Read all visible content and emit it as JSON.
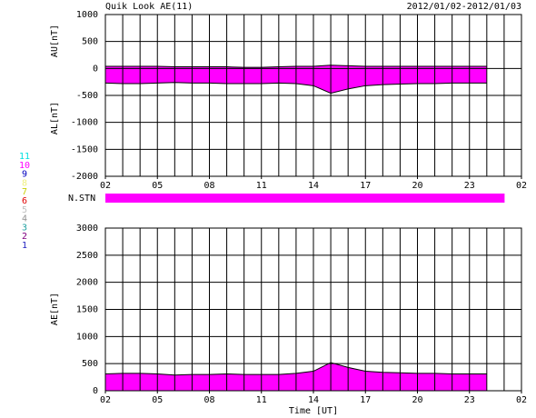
{
  "chart_data": [
    {
      "type": "band",
      "title": "Quik Look AE(11)",
      "subtitle": "2012/01/02-2012/01/03",
      "x": [
        0,
        1,
        2,
        3,
        4,
        5,
        6,
        7,
        8,
        9,
        10,
        11,
        12,
        13,
        14,
        15,
        16,
        17,
        18,
        19,
        20,
        21,
        22
      ],
      "xlim": [
        0,
        24
      ],
      "xticks": [
        {
          "value": 0,
          "label": "02"
        },
        {
          "value": 3,
          "label": "05"
        },
        {
          "value": 6,
          "label": "08"
        },
        {
          "value": 9,
          "label": "11"
        },
        {
          "value": 12,
          "label": "14"
        },
        {
          "value": 15,
          "label": "17"
        },
        {
          "value": 18,
          "label": "20"
        },
        {
          "value": 21,
          "label": "23"
        },
        {
          "value": 24,
          "label": "02"
        }
      ],
      "xgrid_step": 1,
      "ylim": [
        -2000,
        1000
      ],
      "yticks": [
        -2000,
        -1500,
        -1000,
        -500,
        0,
        500,
        1000
      ],
      "grid": true,
      "fill": "#ff00ff",
      "series": [
        {
          "name": "AU[nT]",
          "color": "#000000",
          "values": [
            40,
            40,
            40,
            40,
            30,
            30,
            30,
            30,
            20,
            20,
            30,
            40,
            40,
            60,
            50,
            40,
            40,
            40,
            40,
            40,
            40,
            40,
            40
          ]
        },
        {
          "name": "AL[nT]",
          "color": "#000000",
          "values": [
            -270,
            -280,
            -280,
            -270,
            -260,
            -270,
            -270,
            -280,
            -280,
            -280,
            -270,
            -280,
            -320,
            -460,
            -380,
            -320,
            -300,
            -290,
            -280,
            -280,
            -270,
            -270,
            -270
          ]
        }
      ]
    },
    {
      "type": "strip",
      "ylabel": "N.STN",
      "x": [
        0,
        1,
        2,
        3,
        4,
        5,
        6,
        7,
        8,
        9,
        10,
        11,
        12,
        13,
        14,
        15,
        16,
        17,
        18,
        19,
        20,
        21,
        22
      ],
      "values": [
        10,
        10,
        10,
        10,
        10,
        10,
        10,
        10,
        10,
        10,
        10,
        10,
        10,
        10,
        10,
        10,
        10,
        10,
        10,
        10,
        10,
        10,
        10
      ],
      "legend": [
        {
          "count": 11,
          "color": "#00e0e0"
        },
        {
          "count": 10,
          "color": "#ff00ff"
        },
        {
          "count": 9,
          "color": "#0000c0"
        },
        {
          "count": 8,
          "color": "#f0f080"
        },
        {
          "count": 7,
          "color": "#c8d000"
        },
        {
          "count": 6,
          "color": "#e00000"
        },
        {
          "count": 5,
          "color": "#c0c0c0"
        },
        {
          "count": 4,
          "color": "#909090"
        },
        {
          "count": 3,
          "color": "#20a0a0"
        },
        {
          "count": 2,
          "color": "#800080"
        },
        {
          "count": 1,
          "color": "#2020c0"
        }
      ]
    },
    {
      "type": "area",
      "xlabel": "Time [UT]",
      "ylabel": "AE[nT]",
      "x": [
        0,
        1,
        2,
        3,
        4,
        5,
        6,
        7,
        8,
        9,
        10,
        11,
        12,
        13,
        14,
        15,
        16,
        17,
        18,
        19,
        20,
        21,
        22
      ],
      "xlim": [
        0,
        24
      ],
      "xticks": [
        {
          "value": 0,
          "label": "02"
        },
        {
          "value": 3,
          "label": "05"
        },
        {
          "value": 6,
          "label": "08"
        },
        {
          "value": 9,
          "label": "11"
        },
        {
          "value": 12,
          "label": "14"
        },
        {
          "value": 15,
          "label": "17"
        },
        {
          "value": 18,
          "label": "20"
        },
        {
          "value": 21,
          "label": "23"
        },
        {
          "value": 24,
          "label": "02"
        }
      ],
      "xgrid_step": 1,
      "ylim": [
        0,
        3000
      ],
      "yticks": [
        0,
        500,
        1000,
        1500,
        2000,
        2500,
        3000
      ],
      "grid": true,
      "fill": "#ff00ff",
      "color": "#000000",
      "values": [
        310,
        320,
        320,
        310,
        290,
        300,
        300,
        310,
        300,
        300,
        300,
        320,
        360,
        520,
        430,
        360,
        340,
        330,
        320,
        320,
        310,
        310,
        310
      ]
    }
  ]
}
